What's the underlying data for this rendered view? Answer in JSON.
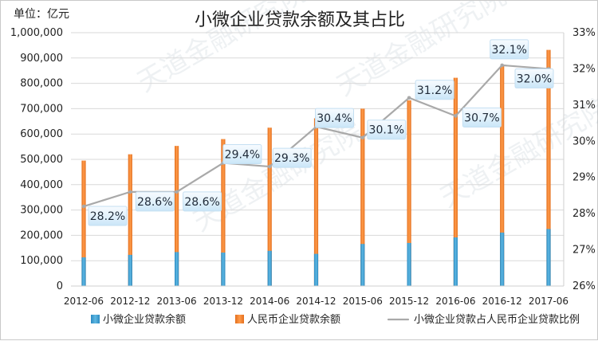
{
  "chart_data": {
    "type": "bar",
    "title": "小微企业贷款余额及其占比",
    "unit_label": "单位：亿元",
    "categories": [
      "2012-06",
      "2012-12",
      "2013-06",
      "2013-12",
      "2014-06",
      "2014-12",
      "2015-06",
      "2015-12",
      "2016-06",
      "2016-12",
      "2017-06"
    ],
    "series": [
      {
        "name": "小微企业贷款余额",
        "type": "bar",
        "axis": "left",
        "color": "#2f91c9",
        "values": [
          113000,
          123000,
          134000,
          132000,
          139000,
          127000,
          166000,
          170000,
          192000,
          211000,
          225000
        ]
      },
      {
        "name": "人民币企业贷款余额",
        "type": "bar",
        "axis": "left",
        "color": "#ee7a26",
        "values": [
          495000,
          520000,
          553000,
          580000,
          625000,
          662000,
          700000,
          733000,
          822000,
          868000,
          932000
        ]
      },
      {
        "name": "小微企业贷款占人民币企业贷款比例",
        "type": "line",
        "axis": "right",
        "color": "#a8a8a8",
        "values": [
          28.2,
          28.6,
          28.6,
          29.4,
          29.3,
          30.4,
          30.1,
          31.2,
          30.7,
          32.1,
          32.0
        ],
        "labels": [
          "28.2%",
          "28.6%",
          "28.6%",
          "29.4%",
          "29.3%",
          "30.4%",
          "30.1%",
          "31.2%",
          "30.7%",
          "32.1%",
          "32.0%"
        ]
      }
    ],
    "y_left": {
      "min": 0,
      "max": 1000000,
      "ticks": [
        0,
        100000,
        200000,
        300000,
        400000,
        500000,
        600000,
        700000,
        800000,
        900000,
        1000000
      ],
      "tick_labels": [
        "0",
        "100,000",
        "200,000",
        "300,000",
        "400,000",
        "500,000",
        "600,000",
        "700,000",
        "800,000",
        "900,000",
        "1,000,000"
      ]
    },
    "y_right": {
      "min": 26,
      "max": 33,
      "ticks": [
        26,
        27,
        28,
        29,
        30,
        31,
        32,
        33
      ],
      "tick_labels": [
        "26%",
        "27%",
        "28%",
        "29%",
        "30%",
        "31%",
        "32%",
        "33%"
      ]
    },
    "legend": [
      "小微企业贷款余额",
      "人民币企业贷款余额",
      "小微企业贷款占人民币企业贷款比例"
    ]
  }
}
